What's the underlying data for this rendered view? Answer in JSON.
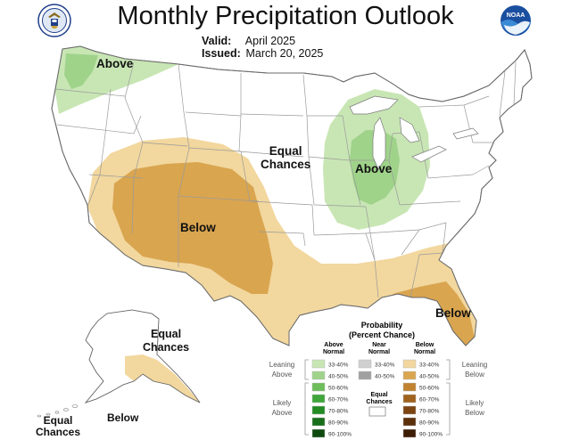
{
  "header": {
    "title": "Monthly Precipitation Outlook",
    "valid_label": "Valid:",
    "valid_value": "April 2025",
    "issued_label": "Issued:",
    "issued_value": "March 20, 2025",
    "left_logo": "department-of-commerce-seal",
    "right_logo_text": "NOAA"
  },
  "map_labels": {
    "northwest": "Above",
    "central": "Equal\nChances",
    "midwest": "Above",
    "southwest": "Below",
    "florida": "Below",
    "alaska_ec": "Equal\nChances",
    "alaska_below": "Below",
    "hawaii_ec": "Equal\nChances"
  },
  "legend": {
    "title": "Probability\n(Percent Chance)",
    "col_above": "Above\nNormal",
    "col_near": "Near\nNormal",
    "col_below": "Below\nNormal",
    "leaning_above": "Leaning\nAbove",
    "likely_above": "Likely\nAbove",
    "leaning_below": "Leaning\nBelow",
    "likely_below": "Likely\nBelow",
    "equal_chances": "Equal\nChances",
    "above_rows": [
      {
        "label": "33-40%",
        "color": "#c8e6b4"
      },
      {
        "label": "40-50%",
        "color": "#9fd38a"
      },
      {
        "label": "50-60%",
        "color": "#6dbd5a"
      },
      {
        "label": "60-70%",
        "color": "#3ea63a"
      },
      {
        "label": "70-80%",
        "color": "#228b22"
      },
      {
        "label": "80-90%",
        "color": "#186e1a"
      },
      {
        "label": "90-100%",
        "color": "#0e4a10"
      }
    ],
    "near_rows": [
      {
        "label": "33-40%",
        "color": "#d0d0d0"
      },
      {
        "label": "40-50%",
        "color": "#a0a0a0"
      }
    ],
    "below_rows": [
      {
        "label": "33-40%",
        "color": "#f2d79e"
      },
      {
        "label": "40-50%",
        "color": "#d9a54f"
      },
      {
        "label": "50-60%",
        "color": "#c0822f"
      },
      {
        "label": "60-70%",
        "color": "#a0621c"
      },
      {
        "label": "70-80%",
        "color": "#7c4511"
      },
      {
        "label": "80-90%",
        "color": "#5c300a"
      },
      {
        "label": "90-100%",
        "color": "#3e1d05"
      }
    ]
  },
  "colors": {
    "above_33_40": "#c8e6b4",
    "above_40_50": "#9fd38a",
    "below_33_40": "#f2d79e",
    "below_40_50": "#d9a54f",
    "border": "#8a8a8a"
  }
}
